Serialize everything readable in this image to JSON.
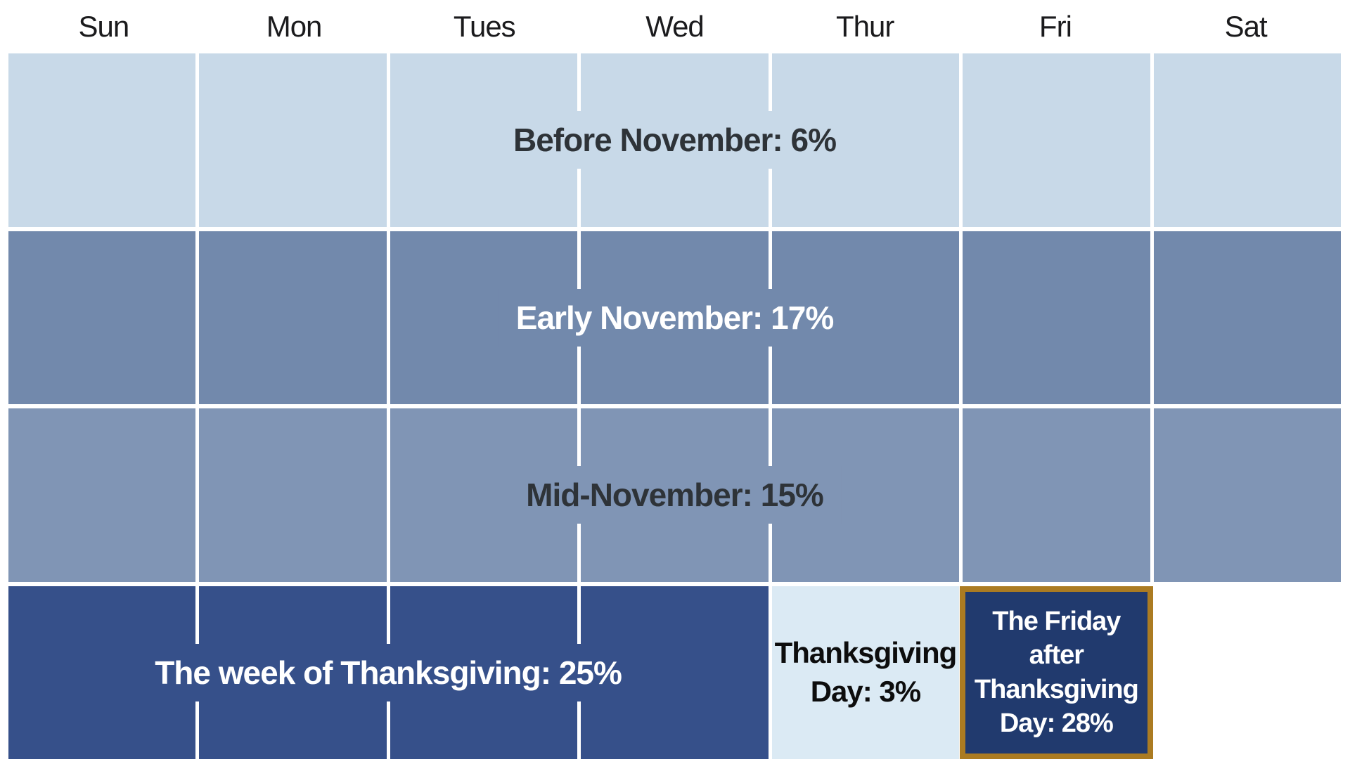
{
  "days": [
    "Sun",
    "Mon",
    "Tues",
    "Wed",
    "Thur",
    "Fri",
    "Sat"
  ],
  "labels": {
    "before_november": "Before November: 6%",
    "early_november": "Early November: 17%",
    "mid_november": "Mid-November: 15%",
    "week_of_thanksgiving": "The week of Thanksgiving: 25%",
    "thanksgiving_day": "Thanksgiving\nDay: 3%",
    "friday_after": "The Friday\nafter\nThanksgiving\nDay: 28%"
  },
  "colors": {
    "before_november": "#c8d9e8",
    "early_november": "#7289ac",
    "mid_november": "#8095b5",
    "week_of_thanksgiving": "#36508a",
    "thanksgiving_day": "#dbeaf4",
    "friday_after": "#213a6e",
    "friday_highlight_border": "#ab7b22",
    "divider": "#ffffff",
    "dark_text": "#2e3338",
    "light_text": "#ffffff",
    "day_header_text": "#1b1b1d"
  },
  "chart_data": {
    "type": "heatmap",
    "columns": [
      "Sun",
      "Mon",
      "Tues",
      "Wed",
      "Thur",
      "Fri",
      "Sat"
    ],
    "rows": 4,
    "legend_position": "none",
    "grid": true,
    "segments": [
      {
        "label": "Before November",
        "value_pct": 6,
        "row": 1,
        "day_span": [
          "Sun",
          "Sat"
        ],
        "color": "#c8d9e8",
        "text_color": "#2e3338"
      },
      {
        "label": "Early November",
        "value_pct": 17,
        "row": 2,
        "day_span": [
          "Sun",
          "Sat"
        ],
        "color": "#7289ac",
        "text_color": "#ffffff"
      },
      {
        "label": "Mid-November",
        "value_pct": 15,
        "row": 3,
        "day_span": [
          "Sun",
          "Sat"
        ],
        "color": "#8095b5",
        "text_color": "#2e3338"
      },
      {
        "label": "The week of Thanksgiving",
        "value_pct": 25,
        "row": 4,
        "day_span": [
          "Sun",
          "Wed"
        ],
        "color": "#36508a",
        "text_color": "#ffffff"
      },
      {
        "label": "Thanksgiving Day",
        "value_pct": 3,
        "row": 4,
        "day_span": [
          "Thur",
          "Thur"
        ],
        "color": "#dbeaf4",
        "text_color": "#0d0d0d"
      },
      {
        "label": "The Friday after Thanksgiving Day",
        "value_pct": 28,
        "row": 4,
        "day_span": [
          "Fri",
          "Fri"
        ],
        "color": "#213a6e",
        "text_color": "#ffffff",
        "border_color": "#ab7b22",
        "highlighted": true
      },
      {
        "label": "",
        "value_pct": null,
        "row": 4,
        "day_span": [
          "Sat",
          "Sat"
        ],
        "color": "#ffffff",
        "text_color": ""
      }
    ]
  }
}
